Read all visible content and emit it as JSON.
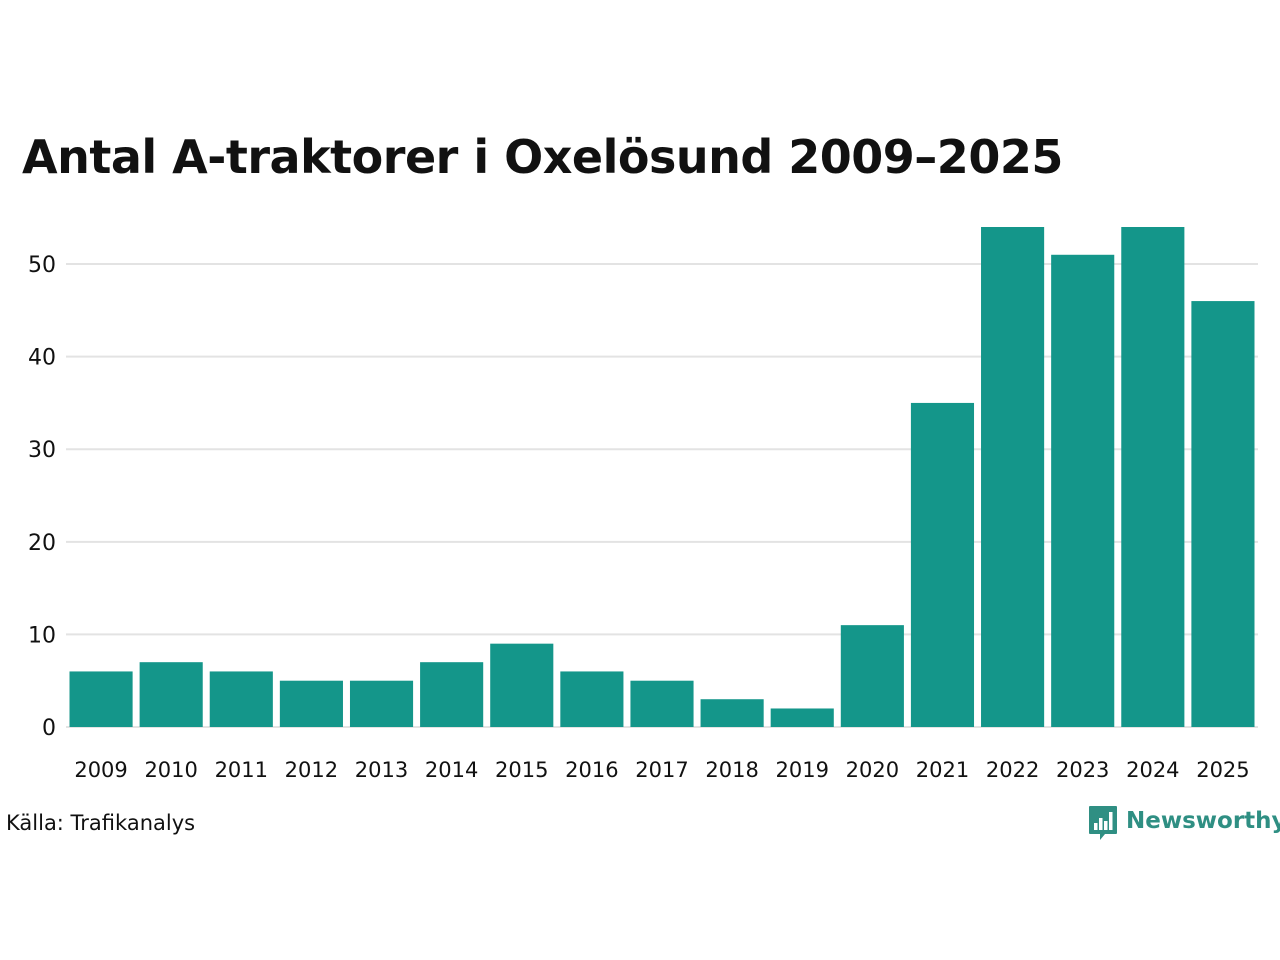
{
  "title": "Antal A-traktorer i Oxelösund 2009–2025",
  "source": "Källa: Trafikanalys",
  "brand": {
    "name": "Newsworthy",
    "icon": "newsworthy-logo-icon"
  },
  "colors": {
    "bar": "#14968a",
    "grid": "#e3e3e3",
    "brand": "#2f8f83"
  },
  "chart_data": {
    "type": "bar",
    "title": "Antal A-traktorer i Oxelösund 2009–2025",
    "xlabel": "",
    "ylabel": "",
    "categories": [
      "2009",
      "2010",
      "2011",
      "2012",
      "2013",
      "2014",
      "2015",
      "2016",
      "2017",
      "2018",
      "2019",
      "2020",
      "2021",
      "2022",
      "2023",
      "2024",
      "2025"
    ],
    "values": [
      6,
      7,
      6,
      5,
      5,
      7,
      9,
      6,
      5,
      3,
      2,
      11,
      35,
      54,
      51,
      54,
      46
    ],
    "ylim": [
      0,
      54
    ],
    "yticks": [
      0,
      10,
      20,
      30,
      40,
      50
    ],
    "grid": true,
    "legend": "none"
  }
}
